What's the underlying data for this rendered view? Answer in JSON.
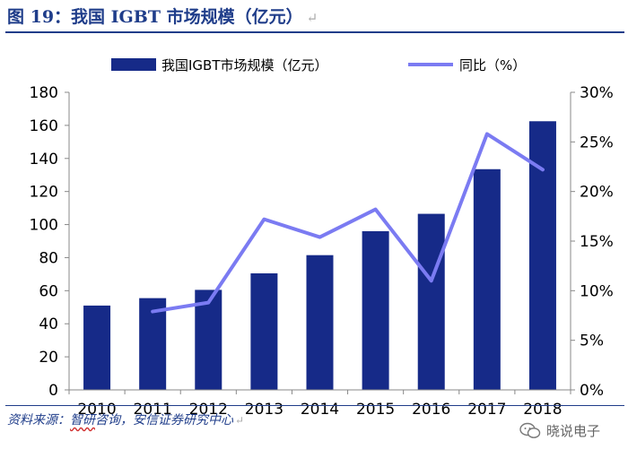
{
  "figure": {
    "title": "图 19：我国 IGBT 市场规模（亿元）",
    "return_mark": "↵",
    "source_prefix": "资料来源：",
    "source_highlight": "智研",
    "source_rest": "咨询，安信证券研究中心",
    "watermark": "晓说电子",
    "watermark_icon": "wechat-icon"
  },
  "colors": {
    "bar": "#162a88",
    "line": "#7b7bf2",
    "title": "#1f3d8a",
    "axis": "#888888",
    "text": "#000000"
  },
  "chart_data": {
    "type": "bar",
    "title": "我国IGBT市场规模（亿元）",
    "categories": [
      "2010",
      "2011",
      "2012",
      "2013",
      "2014",
      "2015",
      "2016",
      "2017",
      "2018"
    ],
    "series": [
      {
        "name": "我国IGBT市场规模（亿元）",
        "type": "bar",
        "axis": "left",
        "values": [
          51,
          55.5,
          60.5,
          70.5,
          81.5,
          96,
          106.5,
          133.5,
          162.5
        ]
      },
      {
        "name": "同比（%）",
        "type": "line",
        "axis": "right",
        "values": [
          null,
          7.9,
          8.8,
          17.2,
          15.4,
          18.2,
          11.0,
          25.8,
          22.2
        ]
      }
    ],
    "y_left": {
      "min": 0,
      "max": 180,
      "ticks": [
        "0",
        "20",
        "40",
        "60",
        "80",
        "100",
        "120",
        "140",
        "160",
        "180"
      ]
    },
    "y_right": {
      "min": 0,
      "max": 30,
      "ticks": [
        "0%",
        "5%",
        "10%",
        "15%",
        "20%",
        "25%",
        "30%"
      ]
    },
    "legend_position": "top-center",
    "grid": false
  }
}
